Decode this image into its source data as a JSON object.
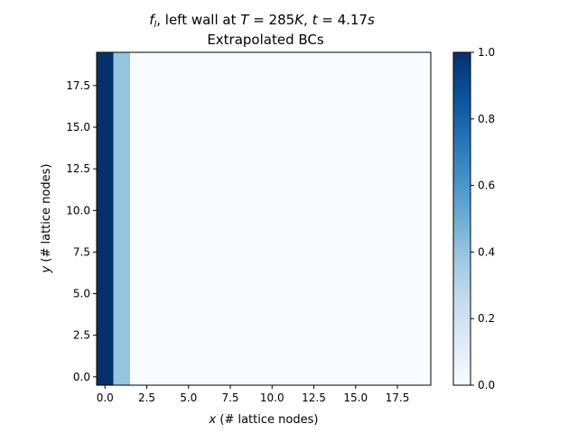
{
  "chart_data": {
    "type": "heatmap",
    "title_line1": "f_l, left wall at T = 285K, t = 4.17s",
    "title_line2": "Extrapolated BCs",
    "xlabel": "x (# lattice nodes)",
    "ylabel": "y (# lattice nodes)",
    "grid": false,
    "colormap": "Blues",
    "colormap_stops": [
      "#f7fbff",
      "#deebf7",
      "#c6dbef",
      "#9ecae1",
      "#6baed6",
      "#4292c6",
      "#2171b5",
      "#08519c",
      "#08306b"
    ],
    "nx": 20,
    "ny": 20,
    "xlim": [
      -0.5,
      19.5
    ],
    "ylim": [
      -0.5,
      19.5
    ],
    "x_ticks": [
      0.0,
      2.5,
      5.0,
      7.5,
      10.0,
      12.5,
      15.0,
      17.5
    ],
    "y_ticks": [
      0.0,
      2.5,
      5.0,
      7.5,
      10.0,
      12.5,
      15.0,
      17.5
    ],
    "column_values": [
      1.0,
      0.4,
      0,
      0,
      0,
      0,
      0,
      0,
      0,
      0,
      0,
      0,
      0,
      0,
      0,
      0,
      0,
      0,
      0,
      0
    ],
    "colorbar": {
      "range": [
        0.0,
        1.0
      ],
      "ticks": [
        0.0,
        0.2,
        0.4,
        0.6,
        0.8,
        1.0
      ]
    }
  }
}
